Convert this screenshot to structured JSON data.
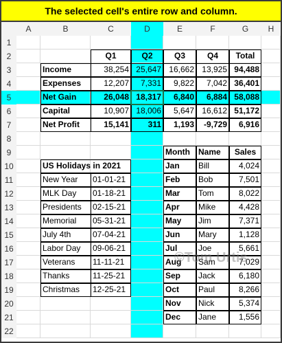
{
  "banner": "The selected cell's entire row and column.",
  "columns": [
    "A",
    "B",
    "C",
    "D",
    "E",
    "F",
    "G",
    "H"
  ],
  "rows": [
    "1",
    "2",
    "3",
    "4",
    "5",
    "6",
    "7",
    "8",
    "9",
    "10",
    "11",
    "12",
    "13",
    "14",
    "15",
    "16",
    "17",
    "18",
    "19",
    "20",
    "21",
    "22"
  ],
  "colors": {
    "highlight": "#00ffff",
    "banner": "#ffff00",
    "header_bg": "#f3f3f3",
    "selected_header": "#d3f0e0"
  },
  "finance": {
    "headers": [
      "Q1",
      "Q2",
      "Q3",
      "Q4",
      "Total"
    ],
    "rows": [
      {
        "label": "Income",
        "values": [
          "38,254",
          "25,647",
          "16,662",
          "13,925",
          "94,488"
        ]
      },
      {
        "label": "Expenses",
        "values": [
          "12,207",
          "7,331",
          "9,822",
          "7,042",
          "36,401"
        ]
      },
      {
        "label": "Net Gain",
        "values": [
          "26,048",
          "18,317",
          "6,840",
          "6,884",
          "58,088"
        ]
      },
      {
        "label": "Capital",
        "values": [
          "10,907",
          "18,006",
          "5,647",
          "16,612",
          "51,172"
        ]
      },
      {
        "label": "Net Profit",
        "values": [
          "15,141",
          "311",
          "1,193",
          "-9,729",
          "6,916"
        ]
      }
    ]
  },
  "holidays": {
    "title": "US Holidays in 2021",
    "rows": [
      {
        "name": "New Year",
        "date": "01-01-21"
      },
      {
        "name": "MLK Day",
        "date": "01-18-21"
      },
      {
        "name": "Presidents",
        "date": "02-15-21"
      },
      {
        "name": "Memorial",
        "date": "05-31-21"
      },
      {
        "name": "July 4th",
        "date": "07-04-21"
      },
      {
        "name": "Labor Day",
        "date": "09-06-21"
      },
      {
        "name": "Veterans",
        "date": "11-11-21"
      },
      {
        "name": "Thanks",
        "date": "11-25-21"
      },
      {
        "name": "Christmas",
        "date": "12-25-21"
      }
    ]
  },
  "sales": {
    "headers": [
      "Month",
      "Name",
      "Sales"
    ],
    "rows": [
      {
        "month": "Jan",
        "name": "Bill",
        "sales": "4,024"
      },
      {
        "month": "Feb",
        "name": "Bob",
        "sales": "7,501"
      },
      {
        "month": "Mar",
        "name": "Tom",
        "sales": "8,022"
      },
      {
        "month": "Apr",
        "name": "Mike",
        "sales": "4,428"
      },
      {
        "month": "May",
        "name": "Jim",
        "sales": "7,371"
      },
      {
        "month": "Jun",
        "name": "Mary",
        "sales": "1,128"
      },
      {
        "month": "Jul",
        "name": "Joe",
        "sales": "5,661"
      },
      {
        "month": "Aug",
        "name": "Sam",
        "sales": "7,029"
      },
      {
        "month": "Sep",
        "name": "Jack",
        "sales": "6,180"
      },
      {
        "month": "Oct",
        "name": "Paul",
        "sales": "8,266"
      },
      {
        "month": "Nov",
        "name": "Nick",
        "sales": "5,374"
      },
      {
        "month": "Dec",
        "name": "Jane",
        "sales": "1,556"
      }
    ]
  },
  "watermark": "©Tom Urtis"
}
